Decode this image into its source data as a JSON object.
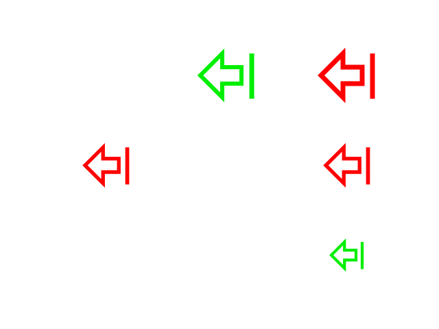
{
  "background": "#ffffff",
  "colors": {
    "green": "#00ee00",
    "red": "#ff0000"
  },
  "icons": [
    {
      "name": "arrow-left-to-bar-icon",
      "color": "green"
    },
    {
      "name": "arrow-left-to-bar-icon",
      "color": "red"
    },
    {
      "name": "arrow-left-to-bar-icon",
      "color": "red"
    },
    {
      "name": "arrow-left-to-bar-icon",
      "color": "red"
    },
    {
      "name": "arrow-left-to-bar-icon",
      "color": "green"
    }
  ]
}
